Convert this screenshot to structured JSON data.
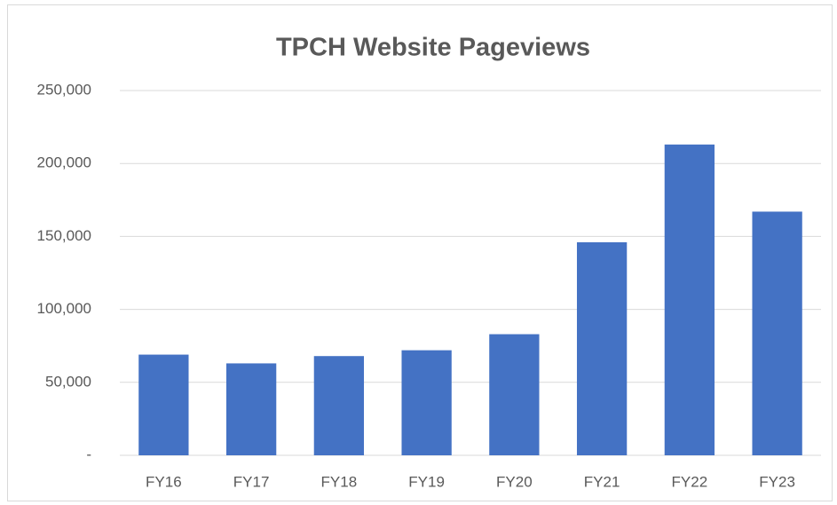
{
  "chart_data": {
    "type": "bar",
    "title": "TPCH Website Pageviews",
    "categories": [
      "FY16",
      "FY17",
      "FY18",
      "FY19",
      "FY20",
      "FY21",
      "FY22",
      "FY23"
    ],
    "values": [
      69000,
      63000,
      68000,
      72000,
      83000,
      146000,
      213000,
      167000
    ],
    "color": "#4472c4",
    "ylim": [
      0,
      250000
    ],
    "yticks": [
      {
        "value": 0,
        "label": "-"
      },
      {
        "value": 50000,
        "label": "50,000"
      },
      {
        "value": 100000,
        "label": "100,000"
      },
      {
        "value": 150000,
        "label": "150,000"
      },
      {
        "value": 200000,
        "label": "200,000"
      },
      {
        "value": 250000,
        "label": "250,000"
      }
    ],
    "grid": true
  }
}
